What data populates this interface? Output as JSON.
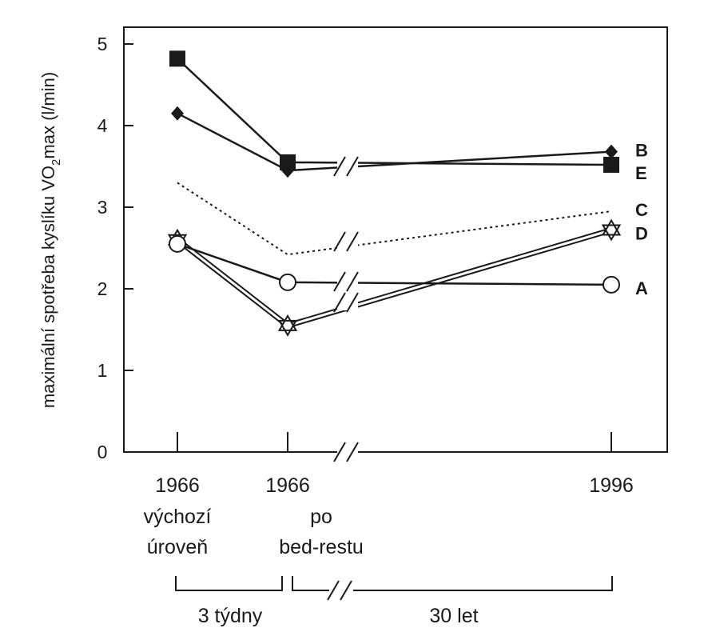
{
  "chart_data": {
    "type": "line",
    "ylabel_main": "maximální spotřeba kyslíku VO",
    "ylabel_sub": "2",
    "ylabel_tail": "max (l/min)",
    "ylim": [
      0,
      5
    ],
    "yticks": [
      "0",
      "1",
      "2",
      "3",
      "4",
      "5"
    ],
    "categories": [
      {
        "year": "1966",
        "desc": [
          "výchozí",
          "úroveň"
        ]
      },
      {
        "year": "1966",
        "desc": [
          "po",
          "bed-restu"
        ]
      },
      {
        "year": "1996",
        "desc": []
      }
    ],
    "periods": [
      "3 týdny",
      "30 let"
    ],
    "grid": false,
    "legend": "inline-right",
    "series": [
      {
        "name": "B",
        "marker": "diamond-filled",
        "values": [
          4.15,
          3.45,
          3.68
        ]
      },
      {
        "name": "E",
        "marker": "square-filled",
        "values": [
          4.82,
          3.55,
          3.52
        ]
      },
      {
        "name": "C",
        "marker": "none",
        "dashed": true,
        "values": [
          3.3,
          2.42,
          2.95
        ]
      },
      {
        "name": "D",
        "marker": "star-open",
        "values": [
          2.6,
          1.55,
          2.72
        ]
      },
      {
        "name": "A",
        "marker": "circle-open",
        "values": [
          2.55,
          2.08,
          2.05
        ]
      }
    ]
  },
  "colors": {
    "ink": "#1a1a1a",
    "background": "#ffffff"
  }
}
